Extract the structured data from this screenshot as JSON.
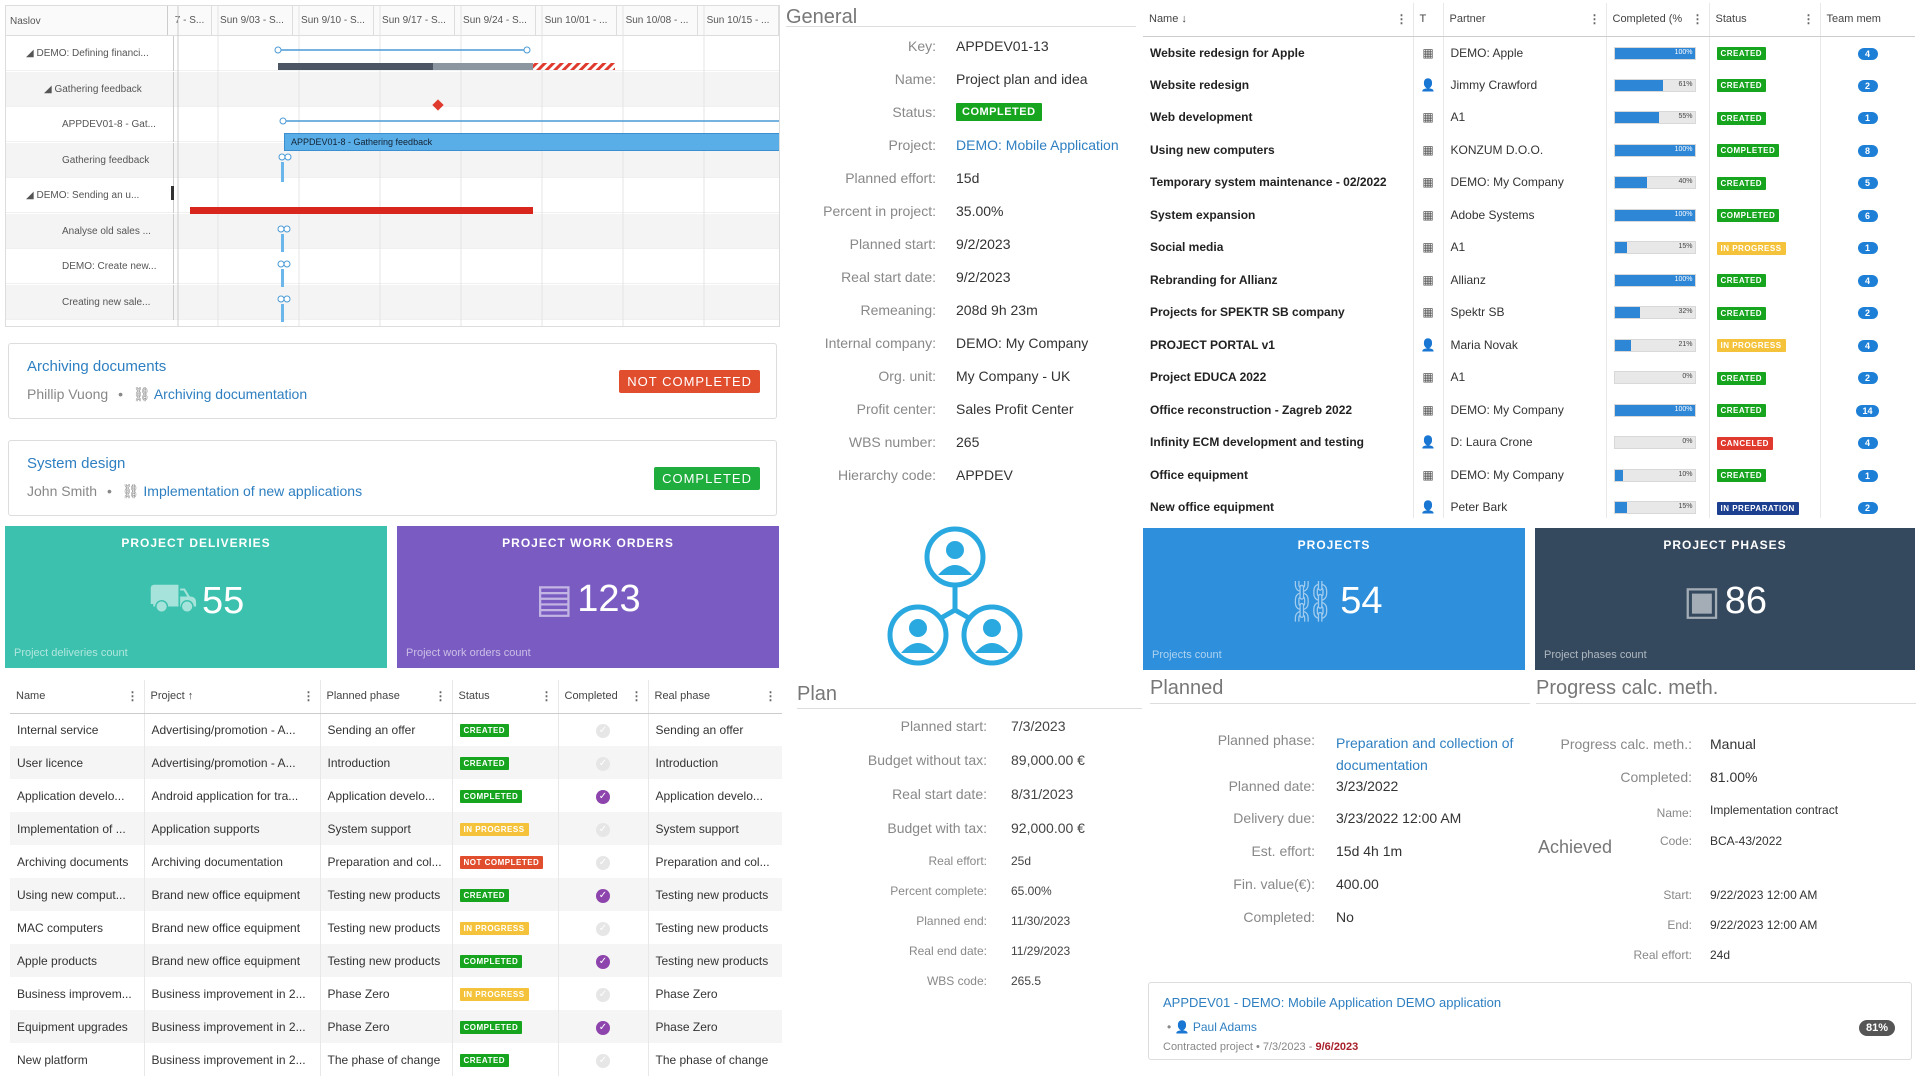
{
  "gantt": {
    "header_name": "Naslov",
    "dates": [
      "7 - S...",
      "Sun 9/03 - S...",
      "Sun 9/10 - S...",
      "Sun 9/17 - S...",
      "Sun 9/24 - S...",
      "Sun 10/01 - ...",
      "Sun 10/08 - ...",
      "Sun 10/15 - ..."
    ],
    "rows": [
      {
        "label": "◢ DEMO: Defining financi...",
        "indent": 0
      },
      {
        "label": "◢ Gathering feedback",
        "indent": 1
      },
      {
        "label": "APPDEV01-8 - Gat...",
        "indent": 2
      },
      {
        "label": "Gathering feedback",
        "indent": 2
      },
      {
        "label": "◢ DEMO: Sending an u...",
        "indent": 0
      },
      {
        "label": "Analyse old sales ...",
        "indent": 2
      },
      {
        "label": "DEMO: Create new...",
        "indent": 2
      },
      {
        "label": "Creating new sale...",
        "indent": 2
      }
    ],
    "bar_label": "APPDEV01-8 - Gathering feedback"
  },
  "cards": [
    {
      "title": "Archiving documents",
      "person": "Phillip Vuong",
      "link": "Archiving documentation",
      "status": "NOT COMPLETED",
      "color": "#e04e2e"
    },
    {
      "title": "System design",
      "person": "John Smith",
      "link": "Implementation of new applications",
      "status": "COMPLETED",
      "color": "#1fae3d"
    }
  ],
  "kpis": [
    {
      "title": "PROJECT DELIVERIES",
      "value": "55",
      "sub": "Project deliveries count",
      "color": "#3bc1ad",
      "icon": "truck-icon"
    },
    {
      "title": "PROJECT WORK ORDERS",
      "value": "123",
      "sub": "Project work orders count",
      "color": "#7a5bc2",
      "icon": "document-icon"
    },
    {
      "title": "PROJECTS",
      "value": "54",
      "sub": "Projects count",
      "color": "#2e8fdc",
      "icon": "hierarchy-icon"
    },
    {
      "title": "PROJECT PHASES",
      "value": "86",
      "sub": "Project phases count",
      "color": "#35495e",
      "icon": "box-icon"
    }
  ],
  "orders": {
    "headers": [
      "Name",
      "Project",
      "Planned phase",
      "Status",
      "Completed",
      "Real phase"
    ],
    "rows": [
      [
        "Internal service",
        "Advertising/promotion - A...",
        "Sending an offer",
        "CREATED",
        false,
        "Sending an offer"
      ],
      [
        "User licence",
        "Advertising/promotion - A...",
        "Introduction",
        "CREATED",
        false,
        "Introduction"
      ],
      [
        "Application develo...",
        "Android application for tra...",
        "Application develo...",
        "COMPLETED",
        true,
        "Application develo..."
      ],
      [
        "Implementation of ...",
        "Application supports",
        "System support",
        "IN PROGRESS",
        false,
        "System support"
      ],
      [
        "Archiving documents",
        "Archiving documentation",
        "Preparation and col...",
        "NOT COMPLETED",
        false,
        "Preparation and col..."
      ],
      [
        "Using new comput...",
        "Brand new office equipment",
        "Testing new products",
        "CREATED",
        true,
        "Testing new products"
      ],
      [
        "MAC computers",
        "Brand new office equipment",
        "Testing new products",
        "IN PROGRESS",
        false,
        "Testing new products"
      ],
      [
        "Apple products",
        "Brand new office equipment",
        "Testing new products",
        "COMPLETED",
        true,
        "Testing new products"
      ],
      [
        "Business improvem...",
        "Business improvement in 2...",
        "Phase Zero",
        "IN PROGRESS",
        false,
        "Phase Zero"
      ],
      [
        "Equipment upgrades",
        "Business improvement in 2...",
        "Phase Zero",
        "COMPLETED",
        true,
        "Phase Zero"
      ],
      [
        "New platform",
        "Business improvement in 2...",
        "The phase of change",
        "CREATED",
        false,
        "The phase of change"
      ]
    ]
  },
  "status_colors": {
    "CREATED": "#17a51f",
    "COMPLETED": "#17a51f",
    "IN PROGRESS": "#f5c33b",
    "NOT COMPLETED": "#e04e2e",
    "CANCELED": "#e03a2e",
    "IN PREPARATION": "#1d3f8f"
  },
  "general": {
    "title": "General",
    "key_label": "Key:",
    "key": "APPDEV01-13",
    "name_label": "Name:",
    "name": "Project plan and idea",
    "status_label": "Status:",
    "status": "COMPLETED",
    "project_label": "Project:",
    "project": "DEMO: Mobile Application",
    "effort_label": "Planned effort:",
    "effort": "15d",
    "percent_label": "Percent in project:",
    "percent": "35.00%",
    "pstart_label": "Planned start:",
    "pstart": "9/2/2023",
    "rstart_label": "Real start date:",
    "rstart": "9/2/2023",
    "remain_label": "Remeaning:",
    "remain": "208d 9h 23m",
    "company_label": "Internal company:",
    "company": "DEMO: My Company",
    "org_label": "Org. unit:",
    "org": "My Company - UK",
    "profit_label": "Profit center:",
    "profit": "Sales Profit Center",
    "wbs_label": "WBS number:",
    "wbs": "265",
    "hier_label": "Hierarchy code:",
    "hier": "APPDEV"
  },
  "plan": {
    "title": "Plan",
    "rows": [
      {
        "k": "Planned start:",
        "v": "7/3/2023"
      },
      {
        "k": "Budget without tax:",
        "v": "89,000.00 €"
      },
      {
        "k": "Real start date:",
        "v": "8/31/2023"
      },
      {
        "k": "Budget with tax:",
        "v": "92,000.00 €"
      },
      {
        "k": "Real effort:",
        "v": "25d"
      },
      {
        "k": "Percent complete:",
        "v": "65.00%"
      },
      {
        "k": "Planned end:",
        "v": "11/30/2023"
      },
      {
        "k": "Real end date:",
        "v": "11/29/2023"
      },
      {
        "k": "WBS code:",
        "v": "265.5"
      }
    ]
  },
  "projects": {
    "headers": [
      "Name",
      "T",
      "Partner",
      "Completed (%",
      "Status",
      "Team mem"
    ],
    "rows": [
      [
        "Website redesign for Apple",
        "building",
        "DEMO: Apple",
        100,
        "CREATED",
        "4"
      ],
      [
        "Website redesign",
        "person",
        "Jimmy Crawford",
        61,
        "CREATED",
        "2"
      ],
      [
        "Web development",
        "building",
        "A1",
        55,
        "CREATED",
        "1"
      ],
      [
        "Using new computers",
        "building",
        "KONZUM D.O.O.",
        100,
        "COMPLETED",
        "8"
      ],
      [
        "Temporary system maintenance - 02/2022",
        "building",
        "DEMO: My Company",
        40,
        "CREATED",
        "5"
      ],
      [
        "System expansion",
        "building",
        "Adobe Systems",
        100,
        "COMPLETED",
        "6"
      ],
      [
        "Social media",
        "building",
        "A1",
        15,
        "IN PROGRESS",
        "1"
      ],
      [
        "Rebranding for Allianz",
        "building",
        "Allianz",
        100,
        "CREATED",
        "4"
      ],
      [
        "Projects for SPEKTR SB company",
        "building",
        "Spektr SB",
        32,
        "CREATED",
        "2"
      ],
      [
        "PROJECT PORTAL v1",
        "person",
        "Maria Novak",
        21,
        "IN PROGRESS",
        "4"
      ],
      [
        "Project EDUCA 2022",
        "building",
        "A1",
        0,
        "CREATED",
        "2"
      ],
      [
        "Office reconstruction - Zagreb 2022",
        "building",
        "DEMO: My Company",
        100,
        "CREATED",
        "14"
      ],
      [
        "Infinity ECM development and testing",
        "person",
        "D: Laura Crone",
        0,
        "CANCELED",
        "4"
      ],
      [
        "Office equipment",
        "building",
        "DEMO: My Company",
        10,
        "CREATED",
        "1"
      ],
      [
        "New office equipment",
        "person",
        "Peter Bark",
        15,
        "IN PREPARATION",
        "2"
      ]
    ]
  },
  "planned": {
    "title": "Planned",
    "phase_label": "Planned phase:",
    "phase": "Preparation and collection of documentation",
    "date_label": "Planned date:",
    "date": "3/23/2022",
    "due_label": "Delivery due:",
    "due": "3/23/2022 12:00 AM",
    "effort_label": "Est. effort:",
    "effort": "15d 4h 1m",
    "fin_label": "Fin. value(€):",
    "fin": "400.00",
    "done_label": "Completed:",
    "done": "No"
  },
  "progress": {
    "title": "Progress calc. meth.",
    "meth_label": "Progress calc. meth.:",
    "meth": "Manual",
    "comp_label": "Completed:",
    "comp": "81.00%",
    "achieved_title": "Achieved",
    "name_label": "Name:",
    "name": "Implementation contract",
    "code_label": "Code:",
    "code": "BCA-43/2022",
    "start_label": "Start:",
    "start": "9/22/2023 12:00 AM",
    "end_label": "End:",
    "end": "9/22/2023 12:00 AM",
    "reff_label": "Real effort:",
    "reff": "24d"
  },
  "footer_card": {
    "title": "APPDEV01 - DEMO: Mobile Application DEMO application",
    "person": "Paul Adams",
    "type": "Contracted project",
    "start": "7/3/2023",
    "end": "9/6/2023",
    "percent": "81%"
  }
}
